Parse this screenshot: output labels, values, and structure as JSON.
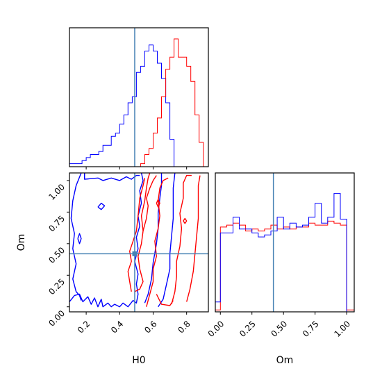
{
  "chart_data": {
    "type": "corner",
    "parameters": [
      "H0",
      "Om"
    ],
    "truths": {
      "H0": 0.49,
      "Om": 0.42
    },
    "colors": {
      "blue": "#0000ff",
      "red": "#ff0000",
      "truth": "#4682b4"
    },
    "axes": {
      "H0": {
        "label": "H0",
        "range": [
          0.1,
          0.93
        ],
        "ticks": [
          0.2,
          0.4,
          0.6,
          0.8
        ],
        "tick_labels": [
          "0.2",
          "0.4",
          "0.6",
          "0.8"
        ]
      },
      "Om": {
        "label": "Om",
        "range": [
          -0.04,
          1.06
        ],
        "ticks": [
          0.0,
          0.25,
          0.5,
          0.75,
          1.0
        ],
        "tick_labels": [
          "0.00",
          "0.25",
          "0.50",
          "0.75",
          "1.00"
        ]
      }
    },
    "hist_h0": {
      "bin_edges": [
        0.1,
        0.125,
        0.15,
        0.175,
        0.2,
        0.225,
        0.25,
        0.275,
        0.3,
        0.325,
        0.35,
        0.375,
        0.4,
        0.425,
        0.45,
        0.475,
        0.5,
        0.525,
        0.55,
        0.575,
        0.6,
        0.625,
        0.65,
        0.675,
        0.7,
        0.725,
        0.75,
        0.775,
        0.8,
        0.825,
        0.85,
        0.875,
        0.9,
        0.925
      ],
      "blue": [
        1,
        1,
        1,
        2,
        3,
        4,
        4,
        5,
        7,
        7,
        10,
        11,
        14,
        17,
        21,
        23,
        31,
        33,
        38,
        40,
        38,
        34,
        29,
        21,
        9,
        0,
        0,
        0,
        0,
        0,
        0,
        0,
        0
      ],
      "red": [
        0,
        0,
        0,
        0,
        0,
        0,
        0,
        0,
        0,
        0,
        0,
        0,
        0,
        0,
        0,
        0,
        0,
        1,
        4,
        6,
        11,
        16,
        23,
        32,
        36,
        42,
        36,
        36,
        33,
        28,
        17,
        8,
        0
      ]
    },
    "hist_om": {
      "bin_edges": [
        -0.04,
        0.0,
        0.05,
        0.1,
        0.15,
        0.2,
        0.25,
        0.3,
        0.35,
        0.4,
        0.45,
        0.5,
        0.55,
        0.6,
        0.65,
        0.7,
        0.75,
        0.8,
        0.85,
        0.9,
        0.95,
        1.0,
        1.06
      ],
      "blue": [
        5,
        40,
        40,
        48,
        42,
        42,
        40,
        38,
        39,
        41,
        48,
        42,
        45,
        43,
        44,
        48,
        55,
        45,
        48,
        60,
        47,
        0
      ],
      "red": [
        1,
        43,
        44,
        45,
        44,
        41,
        42,
        41,
        42,
        44,
        42,
        43,
        42,
        43,
        43,
        45,
        44,
        44,
        46,
        45,
        44,
        1
      ]
    },
    "contours": [
      {
        "color": "blue",
        "points": [
          [
            0.1,
            0.04
          ],
          [
            0.13,
            0.09
          ],
          [
            0.16,
            0.1
          ],
          [
            0.18,
            0.04
          ],
          [
            0.21,
            0.08
          ],
          [
            0.23,
            0.02
          ],
          [
            0.25,
            0.07
          ],
          [
            0.27,
            0.0
          ],
          [
            0.29,
            0.06
          ],
          [
            0.3,
            0.0
          ],
          [
            0.33,
            0.03
          ],
          [
            0.35,
            0.0
          ],
          [
            0.37,
            0.02
          ],
          [
            0.4,
            0.0
          ],
          [
            0.42,
            0.03
          ],
          [
            0.45,
            0.0
          ],
          [
            0.48,
            0.05
          ],
          [
            0.5,
            0.03
          ],
          [
            0.51,
            0.1
          ],
          [
            0.5,
            0.18
          ],
          [
            0.51,
            0.26
          ],
          [
            0.49,
            0.36
          ],
          [
            0.51,
            0.46
          ],
          [
            0.5,
            0.55
          ],
          [
            0.52,
            0.64
          ],
          [
            0.51,
            0.72
          ],
          [
            0.53,
            0.82
          ],
          [
            0.52,
            0.92
          ],
          [
            0.54,
            1.0
          ],
          [
            0.53,
            1.06
          ]
        ]
      },
      {
        "color": "blue",
        "points": [
          [
            0.17,
            1.06
          ],
          [
            0.14,
            0.96
          ],
          [
            0.12,
            0.84
          ],
          [
            0.11,
            0.7
          ],
          [
            0.13,
            0.58
          ],
          [
            0.12,
            0.46
          ],
          [
            0.14,
            0.34
          ],
          [
            0.12,
            0.22
          ],
          [
            0.14,
            0.12
          ],
          [
            0.16,
            0.09
          ],
          [
            0.17,
            0.05
          ]
        ]
      },
      {
        "color": "blue",
        "points": [
          [
            0.19,
            1.06
          ],
          [
            0.19,
            1.01
          ],
          [
            0.27,
            1.02
          ],
          [
            0.3,
            1.0
          ],
          [
            0.35,
            1.02
          ],
          [
            0.4,
            1.0
          ],
          [
            0.44,
            1.03
          ],
          [
            0.47,
            1.01
          ],
          [
            0.5,
            1.04
          ],
          [
            0.52,
            1.04
          ]
        ]
      },
      {
        "color": "blue",
        "points": [
          [
            0.55,
            0.03
          ],
          [
            0.57,
            0.1
          ],
          [
            0.59,
            0.22
          ],
          [
            0.6,
            0.35
          ],
          [
            0.62,
            0.5
          ],
          [
            0.63,
            0.62
          ],
          [
            0.63,
            0.74
          ],
          [
            0.64,
            0.86
          ],
          [
            0.65,
            0.96
          ],
          [
            0.65,
            1.06
          ]
        ]
      },
      {
        "color": "blue",
        "points": [
          [
            0.63,
            0.0
          ],
          [
            0.66,
            0.06
          ],
          [
            0.68,
            0.18
          ],
          [
            0.7,
            0.3
          ],
          [
            0.7,
            0.42
          ],
          [
            0.71,
            0.56
          ],
          [
            0.72,
            0.7
          ],
          [
            0.72,
            0.82
          ],
          [
            0.72,
            0.94
          ],
          [
            0.73,
            1.06
          ]
        ]
      },
      {
        "color": "blue",
        "points": [
          [
            0.15,
            0.54
          ],
          [
            0.16,
            0.5
          ],
          [
            0.17,
            0.54
          ],
          [
            0.16,
            0.58
          ],
          [
            0.15,
            0.54
          ]
        ]
      },
      {
        "color": "blue",
        "points": [
          [
            0.27,
            0.79
          ],
          [
            0.29,
            0.77
          ],
          [
            0.31,
            0.8
          ],
          [
            0.29,
            0.82
          ],
          [
            0.27,
            0.79
          ]
        ]
      },
      {
        "color": "red",
        "points": [
          [
            0.49,
            0.12
          ],
          [
            0.52,
            0.14
          ],
          [
            0.54,
            0.2
          ],
          [
            0.52,
            0.3
          ],
          [
            0.51,
            0.4
          ],
          [
            0.53,
            0.5
          ],
          [
            0.54,
            0.6
          ],
          [
            0.53,
            0.72
          ],
          [
            0.55,
            0.84
          ],
          [
            0.56,
            0.94
          ],
          [
            0.57,
            1.02
          ],
          [
            0.58,
            1.06
          ]
        ]
      },
      {
        "color": "red",
        "points": [
          [
            0.47,
            0.12
          ],
          [
            0.46,
            0.2
          ],
          [
            0.45,
            0.28
          ],
          [
            0.47,
            0.36
          ],
          [
            0.46,
            0.44
          ],
          [
            0.48,
            0.52
          ],
          [
            0.5,
            0.6
          ],
          [
            0.51,
            0.72
          ],
          [
            0.52,
            0.86
          ],
          [
            0.54,
            0.96
          ],
          [
            0.55,
            1.02
          ]
        ]
      },
      {
        "color": "red",
        "points": [
          [
            0.54,
            0.6
          ],
          [
            0.56,
            0.7
          ],
          [
            0.57,
            0.8
          ],
          [
            0.56,
            0.86
          ],
          [
            0.58,
            0.94
          ],
          [
            0.6,
            1.0
          ],
          [
            0.62,
            1.04
          ]
        ]
      },
      {
        "color": "red",
        "points": [
          [
            0.56,
            0.0
          ],
          [
            0.58,
            0.1
          ],
          [
            0.6,
            0.2
          ],
          [
            0.6,
            0.3
          ],
          [
            0.62,
            0.4
          ],
          [
            0.61,
            0.52
          ],
          [
            0.63,
            0.62
          ],
          [
            0.64,
            0.72
          ],
          [
            0.63,
            0.84
          ],
          [
            0.64,
            0.94
          ],
          [
            0.66,
            1.0
          ],
          [
            0.69,
            1.02
          ]
        ]
      },
      {
        "color": "red",
        "points": [
          [
            0.71,
            0.02
          ],
          [
            0.73,
            0.12
          ],
          [
            0.74,
            0.24
          ],
          [
            0.74,
            0.36
          ],
          [
            0.76,
            0.48
          ],
          [
            0.77,
            0.62
          ],
          [
            0.76,
            0.74
          ],
          [
            0.78,
            0.86
          ],
          [
            0.78,
            0.98
          ],
          [
            0.8,
            1.04
          ],
          [
            0.83,
            1.04
          ]
        ]
      },
      {
        "color": "red",
        "points": [
          [
            0.8,
            0.04
          ],
          [
            0.82,
            0.14
          ],
          [
            0.84,
            0.28
          ],
          [
            0.85,
            0.42
          ],
          [
            0.86,
            0.56
          ],
          [
            0.87,
            0.7
          ],
          [
            0.87,
            0.84
          ],
          [
            0.87,
            0.96
          ],
          [
            0.88,
            1.04
          ]
        ]
      },
      {
        "color": "red",
        "points": [
          [
            0.62,
            0.1
          ],
          [
            0.65,
            0.02
          ],
          [
            0.7,
            0.01
          ],
          [
            0.72,
            0.05
          ]
        ]
      },
      {
        "color": "red",
        "points": [
          [
            0.62,
            0.82
          ],
          [
            0.63,
            0.79
          ],
          [
            0.64,
            0.82
          ],
          [
            0.63,
            0.85
          ],
          [
            0.62,
            0.82
          ]
        ]
      },
      {
        "color": "red",
        "points": [
          [
            0.78,
            0.68
          ],
          [
            0.79,
            0.66
          ],
          [
            0.8,
            0.68
          ],
          [
            0.79,
            0.7
          ],
          [
            0.78,
            0.68
          ]
        ]
      }
    ]
  }
}
